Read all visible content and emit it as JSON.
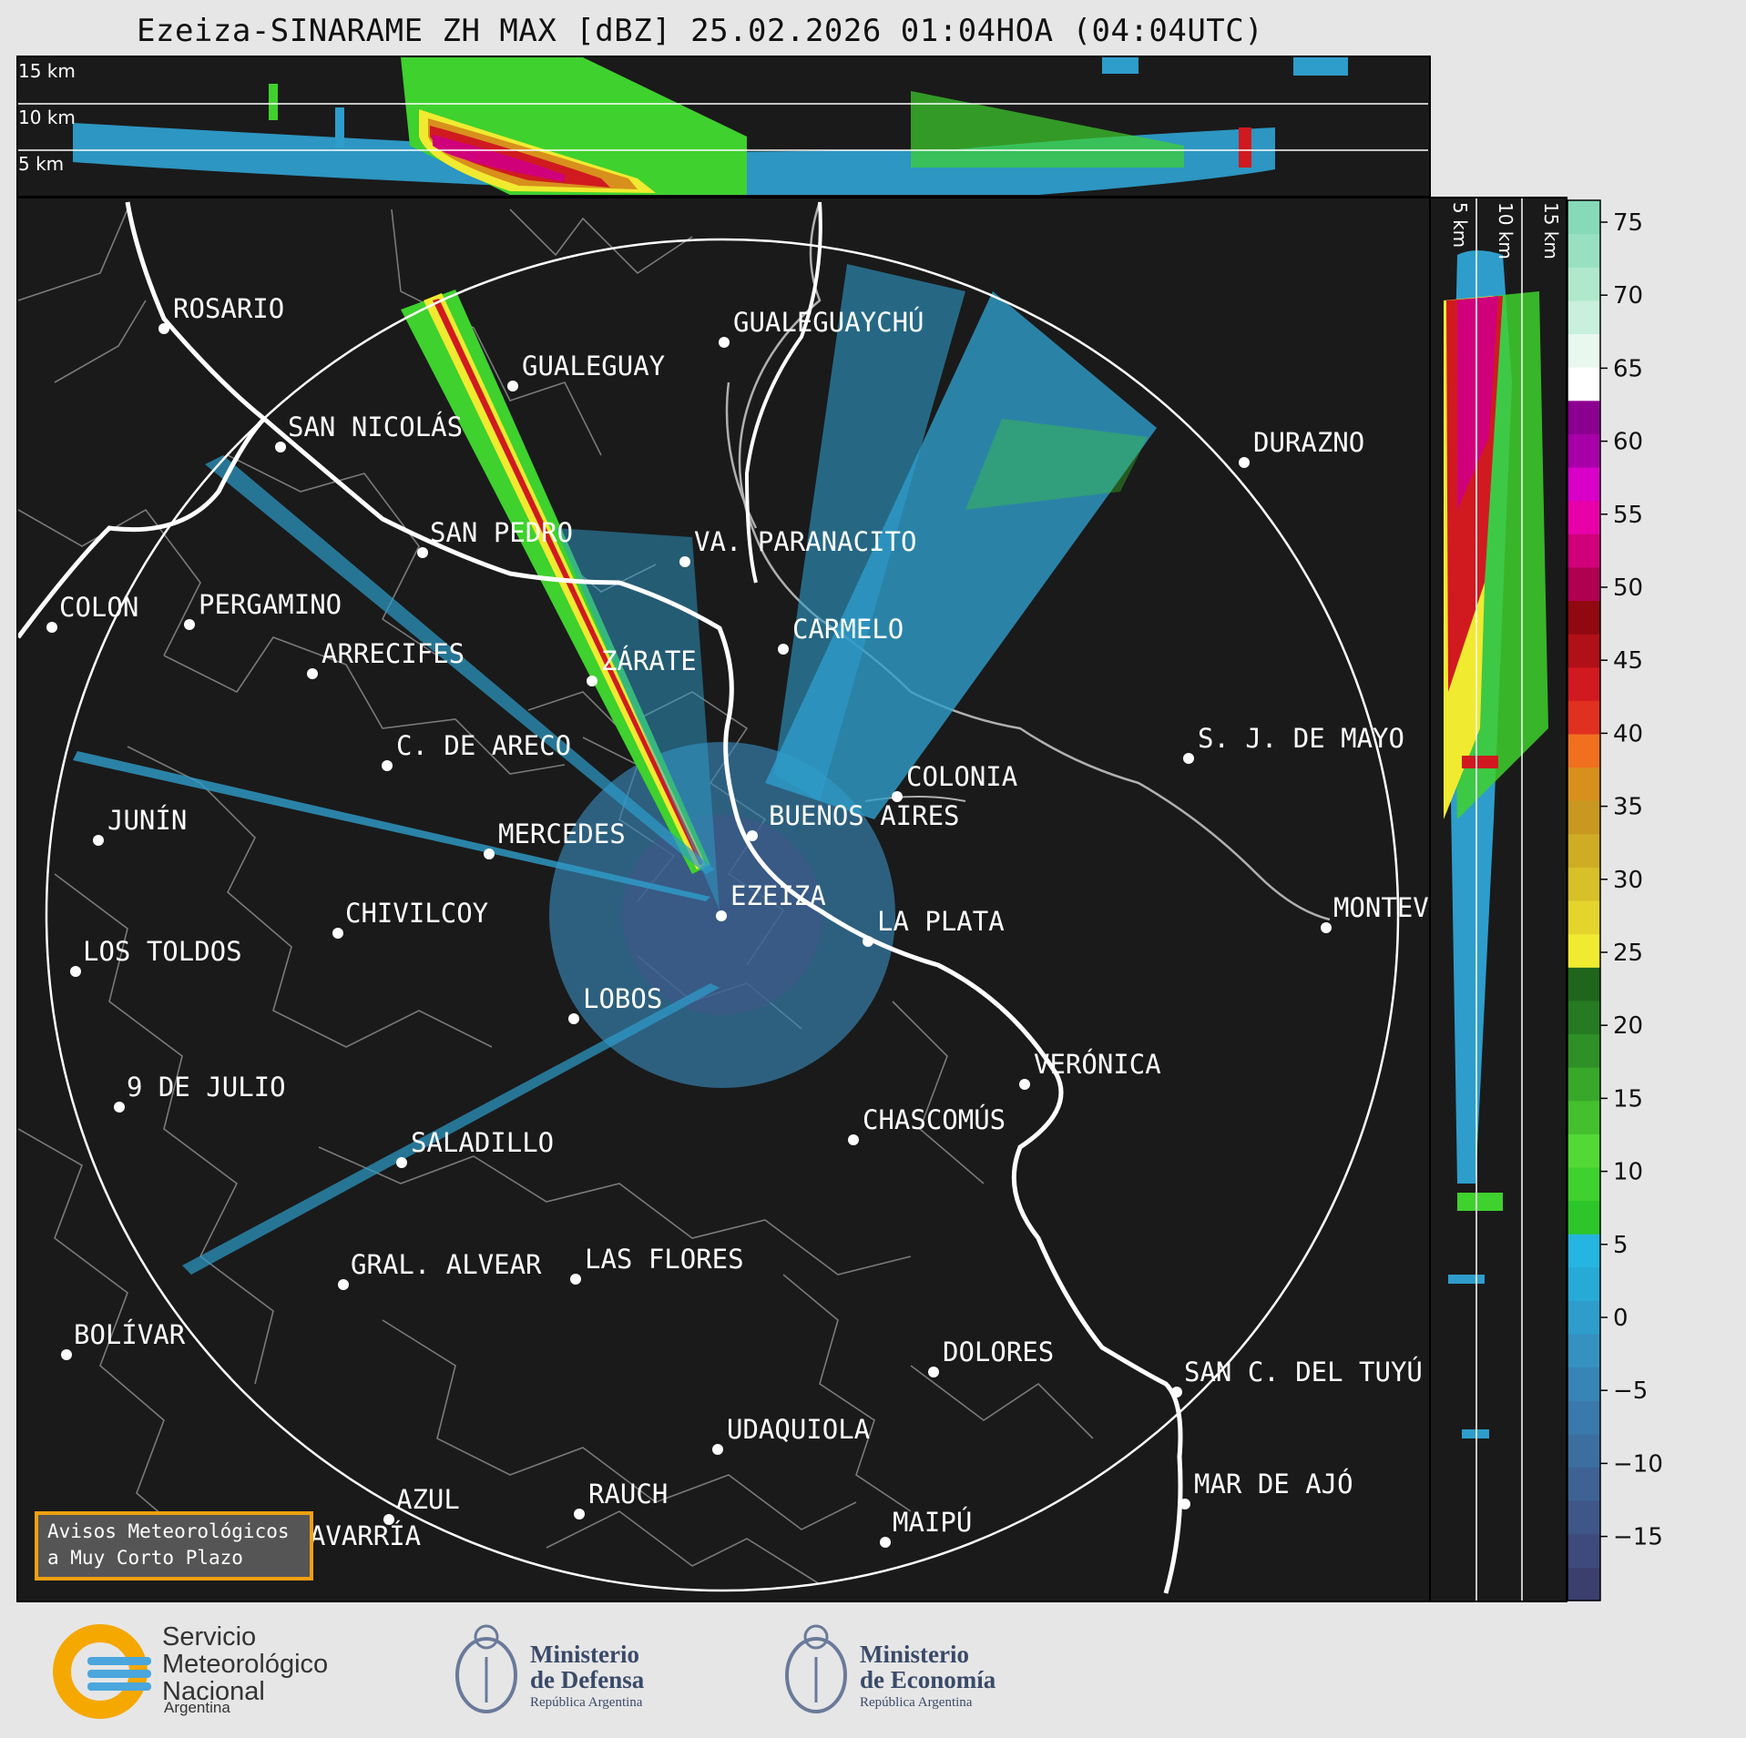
{
  "title": "Ezeiza-SINARAME ZH MAX [dBZ] 25.02.2026 01:04HOA (04:04UTC)",
  "top_panel_labels": [
    "15 km",
    "10 km",
    "5 km"
  ],
  "side_panel_labels": [
    "5 km",
    "10 km",
    "15 km"
  ],
  "colorbar": {
    "ticks": [
      "75",
      "70",
      "65",
      "60",
      "55",
      "50",
      "45",
      "40",
      "35",
      "30",
      "25",
      "20",
      "15",
      "10",
      "5",
      "0",
      "−5",
      "−10",
      "−15"
    ],
    "colors": [
      "#3b3f6e",
      "#3e4a7c",
      "#3f5688",
      "#3e6294",
      "#3c6ea0",
      "#3a79ab",
      "#3785b6",
      "#3591c0",
      "#2e9dcb",
      "#28aad6",
      "#25b5e0",
      "#2cc52a",
      "#3fd12e",
      "#52d935",
      "#44c02f",
      "#38a82a",
      "#2e9026",
      "#267a21",
      "#1f661c",
      "#f0ea30",
      "#e4d42c",
      "#d8c028",
      "#ceac24",
      "#c89820",
      "#d8901c",
      "#f07020",
      "#e03020",
      "#d01a20",
      "#b01018",
      "#900810",
      "#b00050",
      "#d0007a",
      "#e800a8",
      "#d800c8",
      "#a800a8",
      "#8c0090",
      "#ffffff",
      "#e8f8ef",
      "#c8f0dc",
      "#b0e8cc",
      "#98e0c0",
      "#86dab8"
    ]
  },
  "cities": [
    {
      "name": "ROSARIO"
    },
    {
      "name": "GUALEGUAYCHÚ"
    },
    {
      "name": "GUALEGUAY"
    },
    {
      "name": "SAN NICOLÁS"
    },
    {
      "name": "DURAZNO"
    },
    {
      "name": "SAN PEDRO"
    },
    {
      "name": "VA. PARANACITO"
    },
    {
      "name": "COLON"
    },
    {
      "name": "PERGAMINO"
    },
    {
      "name": "CARMELO"
    },
    {
      "name": "ARRECIFES"
    },
    {
      "name": "ZÁRATE"
    },
    {
      "name": "S. J. DE MAYO"
    },
    {
      "name": "C. DE ARECO"
    },
    {
      "name": "COLONIA"
    },
    {
      "name": "JUNÍN"
    },
    {
      "name": "BUENOS AIRES"
    },
    {
      "name": "MERCEDES"
    },
    {
      "name": "MONTEVIDEO"
    },
    {
      "name": "CHIVILCOY"
    },
    {
      "name": "EZEIZA"
    },
    {
      "name": "LA PLATA"
    },
    {
      "name": "LOS TOLDOS"
    },
    {
      "name": "LOBOS"
    },
    {
      "name": "VERÓNICA"
    },
    {
      "name": "9 DE JULIO"
    },
    {
      "name": "CHASCOMÚS"
    },
    {
      "name": "SALADILLO"
    },
    {
      "name": "GRAL. ALVEAR"
    },
    {
      "name": "LAS FLORES"
    },
    {
      "name": "BOLÍVAR"
    },
    {
      "name": "DOLORES"
    },
    {
      "name": "SAN C. DEL TUYÚ"
    },
    {
      "name": "UDAQUIOLA"
    },
    {
      "name": "MAR DE AJÓ"
    },
    {
      "name": "AZUL"
    },
    {
      "name": "RAUCH"
    },
    {
      "name": "MAIPÚ"
    },
    {
      "name": "OLAVARRÍA"
    }
  ],
  "warning_box": {
    "line1": "Avisos Meteorológicos",
    "line2": "a Muy Corto Plazo"
  },
  "logos": {
    "smn": {
      "line1": "Servicio",
      "line2": "Meteorológico",
      "line3": "Nacional",
      "sub": "Argentina"
    },
    "defensa": {
      "line1": "Ministerio",
      "line2": "de Defensa",
      "sub": "República Argentina"
    },
    "economia": {
      "line1": "Ministerio",
      "line2": "de Economía",
      "sub": "República Argentina"
    }
  }
}
